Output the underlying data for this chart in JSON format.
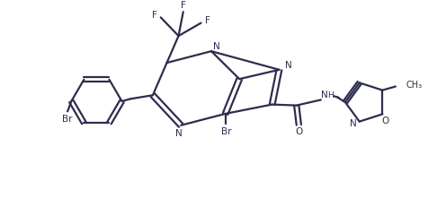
{
  "background_color": "#ffffff",
  "line_color": "#2d2d4e",
  "line_width": 1.6,
  "figsize": [
    4.96,
    2.31
  ],
  "dpi": 100,
  "xlim": [
    0,
    9.5
  ],
  "ylim": [
    0,
    4.4
  ]
}
